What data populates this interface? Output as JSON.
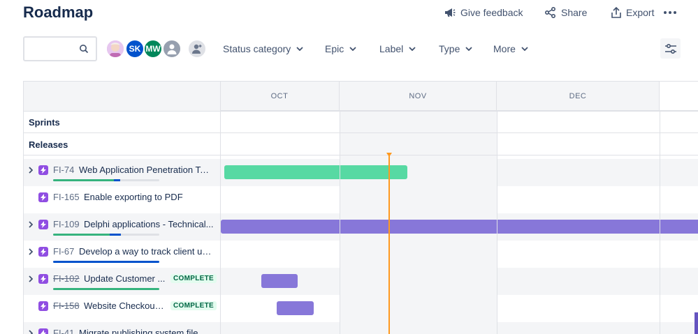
{
  "page_title": "Roadmap",
  "header_actions": {
    "give_feedback": "Give feedback",
    "share": "Share",
    "export": "Export"
  },
  "search": {
    "value": "",
    "placeholder": ""
  },
  "avatars": [
    {
      "initials": "",
      "color": "#c9a0dc"
    },
    {
      "initials": "SK",
      "color": "#0052cc"
    },
    {
      "initials": "MW",
      "color": "#00875a"
    },
    {
      "initials": "",
      "color": "#97a0af"
    }
  ],
  "filters": {
    "status_category": "Status category",
    "epic": "Epic",
    "label": "Label",
    "type": "Type",
    "more": "More"
  },
  "timeline": {
    "months": [
      "OCT",
      "NOV",
      "DEC"
    ],
    "sprints_label": "Sprints",
    "releases_label": "Releases"
  },
  "issues": [
    {
      "key": "FI-74",
      "summary": "Web Application Penetration Te...",
      "complete": "",
      "strike": false,
      "progress_done": 0.57,
      "progress_inprogress": 0.06
    },
    {
      "key": "FI-165",
      "summary": "Enable exporting to PDF",
      "complete": "",
      "strike": false
    },
    {
      "key": "FI-109",
      "summary": "Delphi applications - Technical...",
      "complete": "",
      "strike": false,
      "progress_done": 0.53,
      "progress_inprogress": 0.11
    },
    {
      "key": "FI-67",
      "summary": "Develop a way to track client us...",
      "complete": "",
      "strike": false,
      "progress_done": 0,
      "progress_inprogress": 1.0
    },
    {
      "key": "FI-102",
      "summary": "Update Customer ...",
      "complete": "COMPLETE",
      "strike": true,
      "progress_done": 1.0,
      "progress_inprogress": 0
    },
    {
      "key": "FI-158",
      "summary": "Website Checkout I...",
      "complete": "COMPLETE",
      "strike": true
    },
    {
      "key": "FI-41",
      "summary": "Migrate publishing system files t...",
      "complete": "",
      "strike": false
    }
  ],
  "colors": {
    "bar_green": "#57d9a3",
    "bar_purple": "#8777d9",
    "progress_green": "#36b37e",
    "progress_blue": "#0052cc",
    "today_line": "#ff991f"
  }
}
